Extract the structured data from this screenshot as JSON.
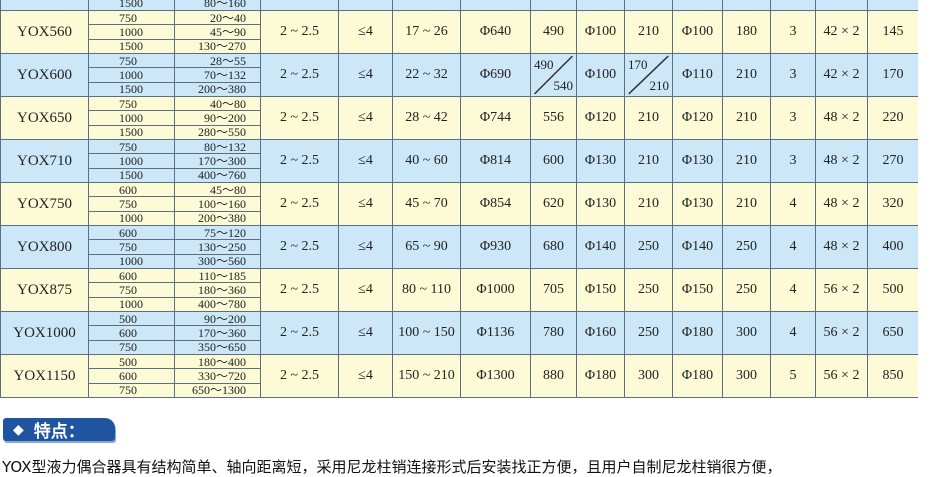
{
  "colors": {
    "row_yellow": "#fdfbd6",
    "row_blue": "#cce7f8",
    "badge": "#1f55a0"
  },
  "table": {
    "rows": [
      {
        "model": "",
        "speeds": [
          "",
          "",
          "1500"
        ],
        "powers": [
          "",
          "",
          "80～160"
        ],
        "slip": "",
        "eff": "",
        "c5": "",
        "c6": "",
        "c7": "",
        "c8": "",
        "c9": "",
        "c10": "",
        "c11": "",
        "c12": "",
        "c13": "",
        "c14": "",
        "partial": true
      },
      {
        "model": "YOX560",
        "speeds": [
          "750",
          "1000",
          "1500"
        ],
        "powers": [
          "20～40",
          "45～90",
          "130～270"
        ],
        "slip": "2 ~ 2.5",
        "eff": "≤4",
        "c5": "17 ~ 26",
        "c6": "Φ640",
        "c7": "490",
        "c8": "Φ100",
        "c9": "210",
        "c10": "Φ100",
        "c11": "180",
        "c12": "3",
        "c13": "42 × 2",
        "c14": "145"
      },
      {
        "model": "YOX600",
        "speeds": [
          "750",
          "1000",
          "1500"
        ],
        "powers": [
          "28～55",
          "70～132",
          "200～380"
        ],
        "slip": "2 ~ 2.5",
        "eff": "≤4",
        "c5": "22 ~ 32",
        "c6": "Φ690",
        "c7": {
          "top": "490",
          "bottom": "540"
        },
        "c8": "Φ100",
        "c9": {
          "top": "170",
          "bottom": "210"
        },
        "c10": "Φ110",
        "c11": "210",
        "c12": "3",
        "c13": "42 × 2",
        "c14": "170"
      },
      {
        "model": "YOX650",
        "speeds": [
          "750",
          "1000",
          "1500"
        ],
        "powers": [
          "40～80",
          "90～200",
          "280～550"
        ],
        "slip": "2 ~ 2.5",
        "eff": "≤4",
        "c5": "28 ~ 42",
        "c6": "Φ744",
        "c7": "556",
        "c8": "Φ120",
        "c9": "210",
        "c10": "Φ120",
        "c11": "210",
        "c12": "3",
        "c13": "48 × 2",
        "c14": "220"
      },
      {
        "model": "YOX710",
        "speeds": [
          "750",
          "1000",
          "1500"
        ],
        "powers": [
          "80～132",
          "170～300",
          "400～760"
        ],
        "slip": "2 ~ 2.5",
        "eff": "≤4",
        "c5": "40 ~ 60",
        "c6": "Φ814",
        "c7": "600",
        "c8": "Φ130",
        "c9": "210",
        "c10": "Φ130",
        "c11": "210",
        "c12": "3",
        "c13": "48 × 2",
        "c14": "270"
      },
      {
        "model": "YOX750",
        "speeds": [
          "600",
          "750",
          "1000"
        ],
        "powers": [
          "45～80",
          "100～160",
          "200～380"
        ],
        "slip": "2 ~ 2.5",
        "eff": "≤4",
        "c5": "45 ~ 70",
        "c6": "Φ854",
        "c7": "620",
        "c8": "Φ130",
        "c9": "210",
        "c10": "Φ130",
        "c11": "210",
        "c12": "4",
        "c13": "48 × 2",
        "c14": "320"
      },
      {
        "model": "YOX800",
        "speeds": [
          "600",
          "750",
          "1000"
        ],
        "powers": [
          "75～120",
          "130～250",
          "300～560"
        ],
        "slip": "2 ~ 2.5",
        "eff": "≤4",
        "c5": "65 ~ 90",
        "c6": "Φ930",
        "c7": "680",
        "c8": "Φ140",
        "c9": "250",
        "c10": "Φ140",
        "c11": "250",
        "c12": "4",
        "c13": "48 × 2",
        "c14": "400"
      },
      {
        "model": "YOX875",
        "speeds": [
          "600",
          "750",
          "1000"
        ],
        "powers": [
          "110～185",
          "180～360",
          "400～780"
        ],
        "slip": "2 ~ 2.5",
        "eff": "≤4",
        "c5": "80 ~ 110",
        "c6": "Φ1000",
        "c7": "705",
        "c8": "Φ150",
        "c9": "250",
        "c10": "Φ150",
        "c11": "250",
        "c12": "4",
        "c13": "56 × 2",
        "c14": "500"
      },
      {
        "model": "YOX1000",
        "speeds": [
          "500",
          "600",
          "750"
        ],
        "powers": [
          "90～200",
          "170～360",
          "350～650"
        ],
        "slip": "2 ~ 2.5",
        "eff": "≤4",
        "c5": "100 ~ 150",
        "c6": "Φ1136",
        "c7": "780",
        "c8": "Φ160",
        "c9": "250",
        "c10": "Φ180",
        "c11": "300",
        "c12": "4",
        "c13": "56 × 2",
        "c14": "650"
      },
      {
        "model": "YOX1150",
        "speeds": [
          "500",
          "600",
          "750"
        ],
        "powers": [
          "180～400",
          "330～720",
          "650～1300"
        ],
        "slip": "2 ~ 2.5",
        "eff": "≤4",
        "c5": "150 ~ 210",
        "c6": "Φ1300",
        "c7": "880",
        "c8": "Φ180",
        "c9": "300",
        "c10": "Φ180",
        "c11": "300",
        "c12": "5",
        "c13": "56 × 2",
        "c14": "850"
      }
    ]
  },
  "features": {
    "icon": "diamond-icon",
    "title": "特点：",
    "text": "YOX型液力偶合器具有结构简单、轴向距离短，采用尼龙柱销连接形式后安装找正方便，且用户自制尼龙柱销很方便，"
  }
}
